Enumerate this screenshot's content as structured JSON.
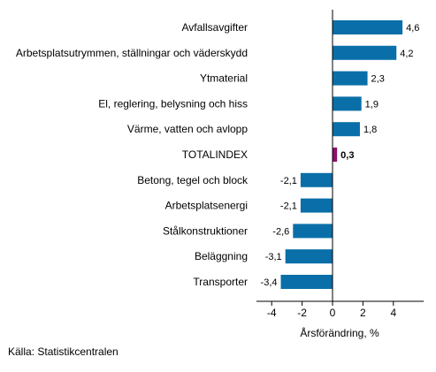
{
  "chart_data": {
    "type": "bar",
    "orientation": "horizontal",
    "categories": [
      "Avfallsavgifter",
      "Arbetsplatsutrymmen, ställningar och väderskydd",
      "Ytmaterial",
      "El, reglering, belysning och hiss",
      "Värme, vatten och avlopp",
      "TOTALINDEX",
      "Betong, tegel och block",
      "Arbetsplatsenergi",
      "Stålkonstruktioner",
      "Beläggning",
      "Transporter"
    ],
    "values": [
      4.6,
      4.2,
      2.3,
      1.9,
      1.8,
      0.3,
      -2.1,
      -2.1,
      -2.6,
      -3.1,
      -3.4
    ],
    "value_labels": [
      "4,6",
      "4,2",
      "2,3",
      "1,9",
      "1,8",
      "0,3",
      "-2,1",
      "-2,1",
      "-2,6",
      "-3,1",
      "-3,4"
    ],
    "highlight_category": "TOTALINDEX",
    "xlabel": "Årsförändring, %",
    "xlim": [
      -5,
      6
    ],
    "xticks": [
      -4,
      -2,
      0,
      2,
      4
    ],
    "xtick_labels": [
      "-4",
      "-2",
      "0",
      "2",
      "4"
    ],
    "grid": false,
    "colors": {
      "bar": "#0a6fa8",
      "highlight": "#8c0f6e",
      "axis": "#000000"
    }
  },
  "source": "Källa: Statistikcentralen"
}
